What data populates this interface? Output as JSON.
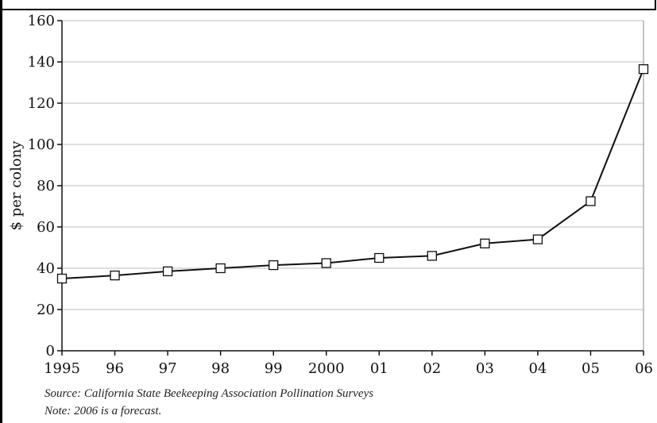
{
  "chart_data": {
    "type": "line",
    "title": "",
    "xlabel": "",
    "ylabel": "$ per colony",
    "categories": [
      "1995",
      "96",
      "97",
      "98",
      "99",
      "2000",
      "01",
      "02",
      "03",
      "04",
      "05",
      "06"
    ],
    "series": [
      {
        "values": [
          35,
          36.5,
          38.5,
          40,
          41.5,
          42.5,
          45,
          46,
          52,
          54,
          72.5,
          136.5
        ]
      }
    ],
    "ylim": [
      0,
      160
    ],
    "yticks": [
      0,
      20,
      40,
      60,
      80,
      100,
      120,
      140,
      160
    ],
    "grid": true,
    "marker": "open-square",
    "line_color": "#111111",
    "grid_color": "#bdbdbd"
  },
  "footer": {
    "source": "Source: California State Beekeeping Association Pollination Surveys",
    "note": "Note: 2006 is a forecast."
  }
}
